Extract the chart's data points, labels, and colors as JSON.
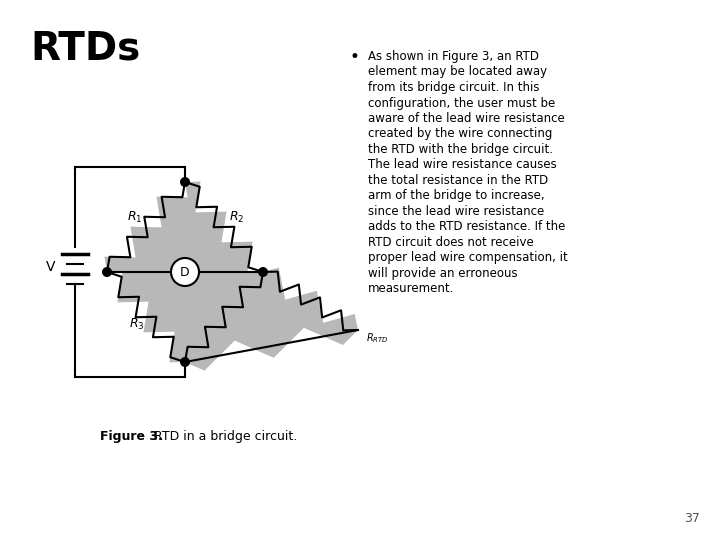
{
  "title": "RTDs",
  "title_fontsize": 28,
  "title_fontweight": "bold",
  "bg_color": "#ffffff",
  "text_color": "#000000",
  "figure_caption_bold": "Figure 3.",
  "figure_caption_normal": " RTD in a bridge circuit.",
  "bullet_lines": [
    "As shown in Figure 3, an RTD",
    "element may be located away",
    "from its bridge circuit. In this",
    "configuration, the user must be",
    "aware of the lead wire resistance",
    "created by the wire connecting",
    "the RTD with the bridge circuit.",
    "The lead wire resistance causes",
    "the total resistance in the RTD",
    "arm of the bridge to increase,",
    "since the lead wire resistance",
    "adds to the RTD resistance. If the",
    "RTD circuit does not receive",
    "proper lead wire compensation, it",
    "will provide an erroneous",
    "measurement."
  ],
  "page_number": "37",
  "circuit_gray": "#b8b8b8",
  "circuit_line_color": "#000000"
}
